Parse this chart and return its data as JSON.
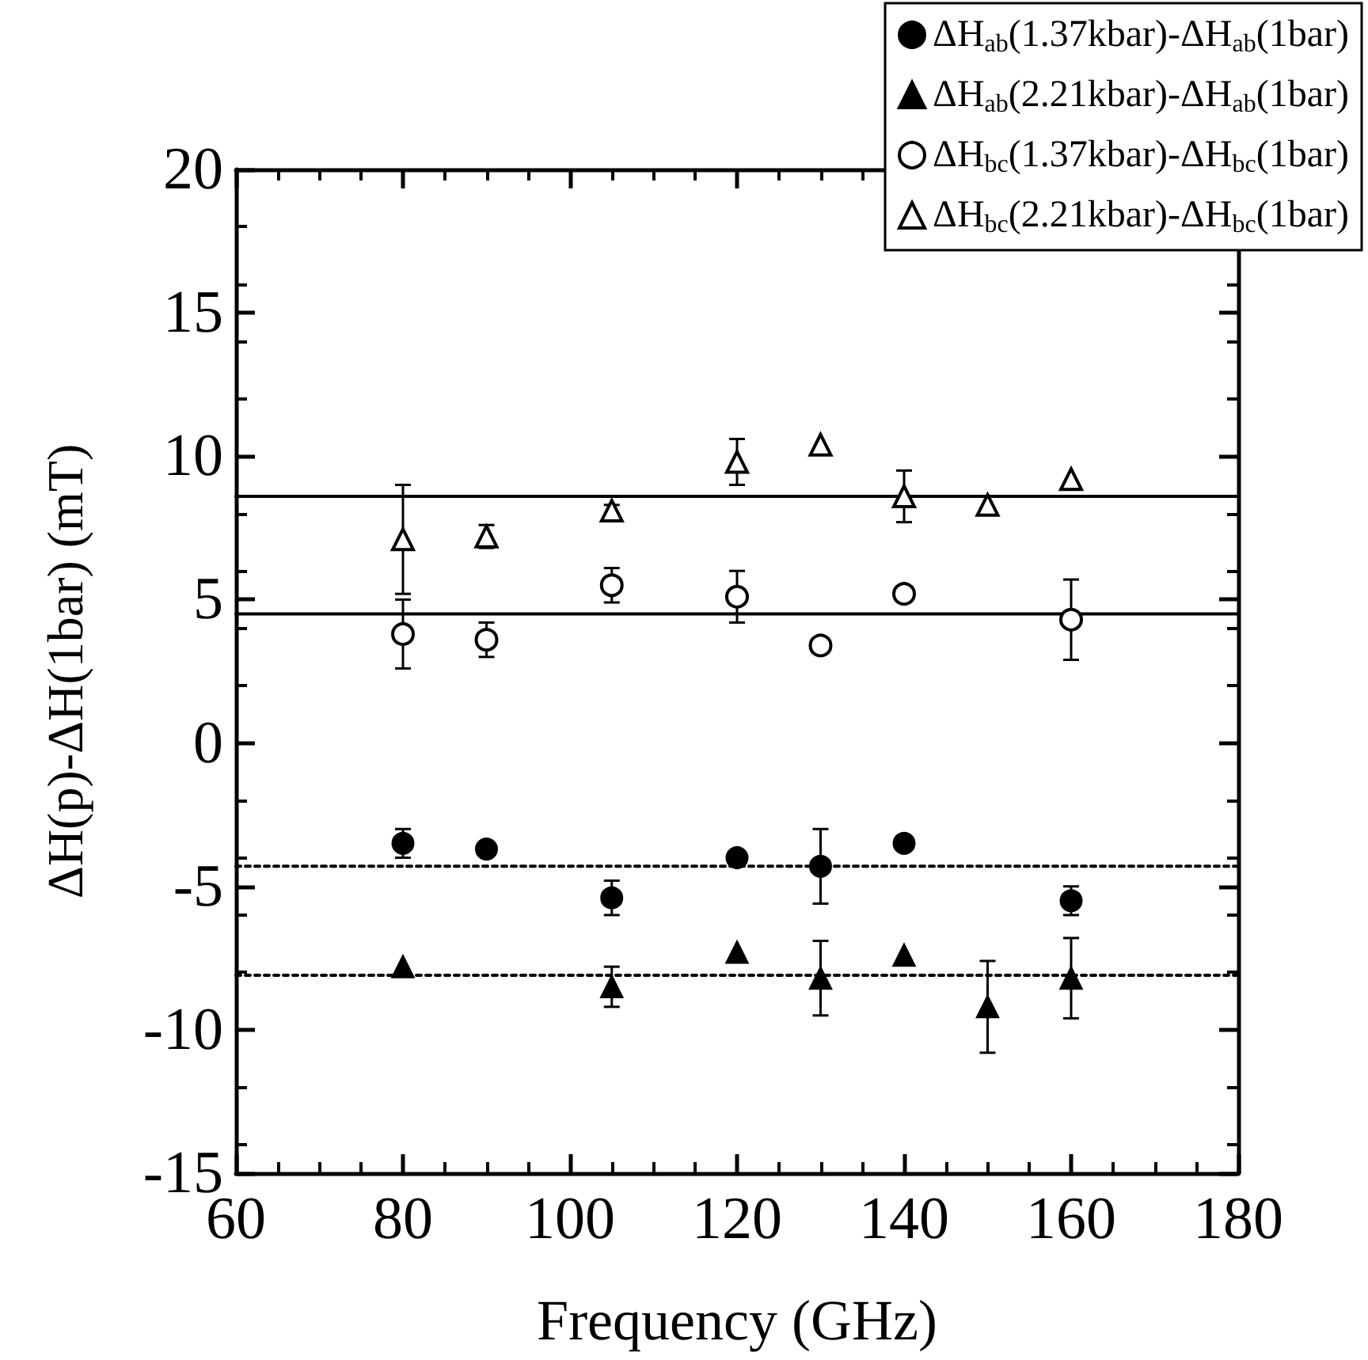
{
  "chart_data": {
    "type": "scatter",
    "xlabel": "Frequency (GHz)",
    "ylabel": "ΔH(p)-ΔH(1bar) (mT)",
    "xlim": [
      60,
      180
    ],
    "xticks": [
      60,
      80,
      100,
      120,
      140,
      160,
      180
    ],
    "ylim": [
      -15,
      20
    ],
    "yticks": [
      -15,
      -10,
      -5,
      0,
      5,
      10,
      15,
      20
    ],
    "grid": false,
    "legend": "top right",
    "series": [
      {
        "name": "ΔH$_{ab}$(1.37kbar)-ΔH$_{ab}$(1bar)",
        "color": "#000000",
        "marker": "circle",
        "x": [
          80,
          90,
          105,
          120,
          130,
          140,
          160
        ],
        "values": [
          -3.5,
          -3.7,
          -5.4,
          -4.0,
          -4.3,
          -3.5,
          -5.5
        ],
        "errors": [
          0.5,
          null,
          0.6,
          null,
          1.3,
          null,
          0.5
        ]
      },
      {
        "name": "ΔH$_{ab}$(2.21kbar)-ΔH$_{ab}$(1bar)",
        "color": "#000000",
        "marker": "triangle",
        "x": [
          80,
          105,
          120,
          130,
          140,
          150,
          160
        ],
        "values": [
          -7.8,
          -8.5,
          -7.3,
          -8.2,
          -7.4,
          -9.2,
          -8.2
        ],
        "errors": [
          null,
          0.7,
          null,
          1.3,
          null,
          1.6,
          1.4
        ]
      },
      {
        "name": "ΔH$_{bc}$(1.37kbar)-ΔH$_{bc}$(1bar)",
        "color": "#000000",
        "marker": "circle-open",
        "x": [
          80,
          90,
          105,
          120,
          130,
          140,
          160
        ],
        "values": [
          3.8,
          3.6,
          5.5,
          5.1,
          3.4,
          5.2,
          4.3
        ],
        "errors": [
          1.2,
          0.6,
          0.6,
          0.9,
          null,
          null,
          1.4
        ]
      },
      {
        "name": "ΔH$_{bc}$(2.21kbar)-ΔH$_{bc}$(1bar)",
        "color": "#000000",
        "marker": "triangle-open",
        "x": [
          80,
          90,
          105,
          120,
          130,
          140,
          150,
          160
        ],
        "values": [
          7.1,
          7.2,
          8.1,
          9.8,
          10.4,
          8.6,
          8.3,
          9.2
        ],
        "errors": [
          1.9,
          0.4,
          0.2,
          0.8,
          null,
          0.9,
          null,
          null
        ]
      },
      {
        "type": "line",
        "color": "#000000",
        "line_style": "dotted",
        "marker": "none",
        "x": [
          60,
          180
        ],
        "values": [
          -4.3,
          -4.3
        ]
      },
      {
        "type": "line",
        "color": "#000000",
        "line_style": "dotted",
        "marker": "none",
        "x": [
          60,
          180
        ],
        "values": [
          -8.1,
          -8.1
        ]
      },
      {
        "type": "line",
        "color": "#000000",
        "line_style": "solid",
        "marker": "none",
        "x": [
          60,
          180
        ],
        "values": [
          4.5,
          4.5
        ]
      },
      {
        "type": "line",
        "color": "#000000",
        "line_style": "solid",
        "marker": "none",
        "x": [
          60,
          180
        ],
        "values": [
          8.6,
          8.6
        ]
      }
    ]
  }
}
